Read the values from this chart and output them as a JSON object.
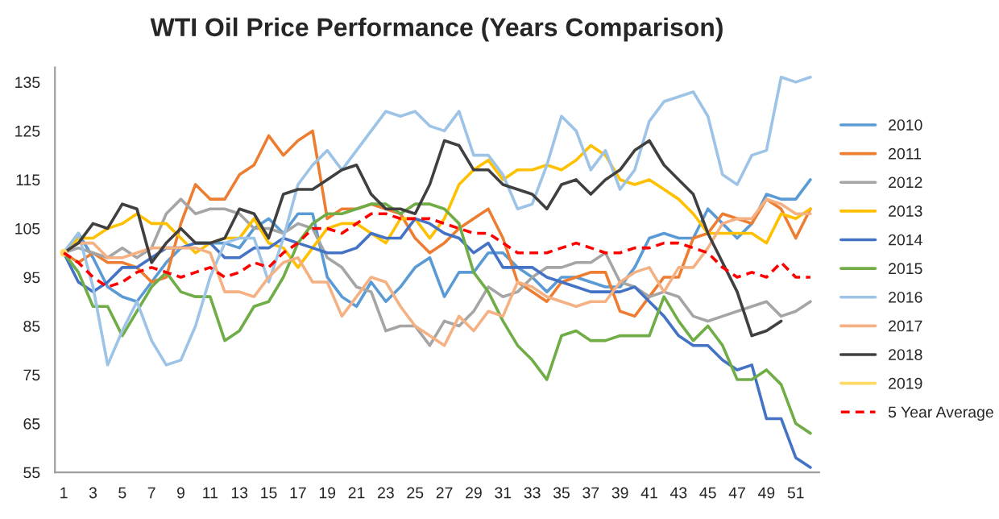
{
  "chart_data": {
    "type": "line",
    "title": "WTI Oil Price Performance (Years Comparison)",
    "categories": [
      "1",
      null,
      "3",
      null,
      "5",
      null,
      "7",
      null,
      "9",
      null,
      "11",
      null,
      "13",
      null,
      "15",
      null,
      "17",
      null,
      "19",
      null,
      "21",
      null,
      "23",
      null,
      "25",
      null,
      "27",
      null,
      "29",
      null,
      "31",
      null,
      "33",
      null,
      "35",
      null,
      "37",
      null,
      "39",
      null,
      "41",
      null,
      "43",
      null,
      "45",
      null,
      "47",
      null,
      "49",
      null,
      "51",
      null
    ],
    "ylim": [
      55,
      138
    ],
    "yticks": [
      55,
      65,
      75,
      85,
      95,
      105,
      115,
      125,
      135
    ],
    "grid": false,
    "legend": "right",
    "marker": "none",
    "series": [
      {
        "name": "2010",
        "color": "#5b9bd5",
        "values": [
          100,
          104,
          99,
          93,
          91,
          90,
          94,
          98,
          101,
          102,
          102,
          102,
          101,
          105,
          107,
          104,
          108,
          108,
          95,
          91,
          89,
          94,
          90,
          93,
          97,
          99,
          91,
          96,
          96,
          100,
          100,
          97,
          95,
          92,
          95,
          95,
          94,
          93,
          93,
          97,
          103,
          104,
          103,
          103,
          109,
          106,
          103,
          106,
          112,
          111,
          111,
          115
        ]
      },
      {
        "name": "2011",
        "color": "#ed7d31",
        "values": [
          100,
          98,
          100,
          98,
          98,
          97,
          94,
          95,
          106,
          114,
          111,
          111,
          116,
          118,
          124,
          120,
          123,
          125,
          107,
          109,
          109,
          110,
          109,
          108,
          103,
          100,
          102,
          105,
          107,
          109,
          103,
          94,
          92,
          90,
          94,
          95,
          96,
          96,
          88,
          87,
          91,
          95,
          95,
          103,
          104,
          108,
          107,
          106,
          111,
          109,
          103,
          109
        ]
      },
      {
        "name": "2012",
        "color": "#a5a5a5",
        "values": [
          100,
          101,
          100,
          99,
          101,
          99,
          101,
          108,
          111,
          108,
          109,
          109,
          108,
          105,
          105,
          104,
          106,
          105,
          99,
          97,
          93,
          92,
          84,
          85,
          85,
          81,
          86,
          85,
          88,
          93,
          91,
          92,
          95,
          97,
          97,
          98,
          98,
          100,
          94,
          93,
          91,
          92,
          91,
          87,
          86,
          87,
          88,
          89,
          90,
          87,
          88,
          90
        ]
      },
      {
        "name": "2013",
        "color": "#ffc000",
        "values": [
          100,
          103,
          103,
          105,
          106,
          108,
          106,
          106,
          103,
          100,
          102,
          103,
          103,
          107,
          102,
          101,
          97,
          101,
          105,
          106,
          106,
          104,
          102,
          107,
          107,
          103,
          107,
          114,
          117,
          119,
          115,
          117,
          117,
          118,
          117,
          119,
          122,
          120,
          115,
          114,
          115,
          113,
          111,
          108,
          104,
          104,
          104,
          104,
          102,
          108,
          107,
          109
        ]
      },
      {
        "name": "2014",
        "color": "#4472c4",
        "values": [
          100,
          94,
          92,
          94,
          97,
          97,
          99,
          101,
          101,
          102,
          102,
          99,
          99,
          101,
          101,
          103,
          102,
          101,
          100,
          100,
          101,
          104,
          103,
          103,
          107,
          106,
          104,
          103,
          100,
          102,
          97,
          97,
          97,
          95,
          94,
          93,
          92,
          92,
          92,
          93,
          90,
          87,
          83,
          81,
          81,
          78,
          76,
          77,
          66,
          66,
          58,
          56
        ]
      },
      {
        "name": "2015",
        "color": "#70ad47",
        "values": [
          100,
          96,
          89,
          89,
          83,
          88,
          93,
          96,
          92,
          91,
          91,
          82,
          84,
          89,
          90,
          95,
          102,
          106,
          108,
          108,
          109,
          110,
          110,
          108,
          110,
          110,
          109,
          106,
          96,
          92,
          86,
          81,
          78,
          74,
          83,
          84,
          82,
          82,
          83,
          83,
          83,
          91,
          86,
          82,
          85,
          81,
          74,
          74,
          76,
          73,
          65,
          63
        ]
      },
      {
        "name": "2016",
        "color": "#9dc3e6",
        "values": [
          100,
          104,
          93,
          77,
          84,
          90,
          82,
          77,
          78,
          85,
          95,
          102,
          103,
          103,
          94,
          103,
          114,
          118,
          121,
          117,
          121,
          125,
          129,
          128,
          129,
          126,
          125,
          129,
          120,
          120,
          116,
          109,
          110,
          118,
          128,
          125,
          117,
          121,
          113,
          117,
          127,
          131,
          132,
          133,
          128,
          116,
          114,
          120,
          121,
          136,
          135,
          136
        ]
      },
      {
        "name": "2017",
        "color": "#f4b183",
        "values": [
          100,
          102,
          102,
          99,
          99,
          100,
          101,
          101,
          101,
          101,
          100,
          92,
          92,
          91,
          95,
          98,
          99,
          94,
          94,
          87,
          91,
          95,
          94,
          89,
          85,
          83,
          81,
          87,
          84,
          88,
          87,
          94,
          93,
          91,
          90,
          89,
          90,
          90,
          94,
          96,
          97,
          92,
          97,
          97,
          101,
          106,
          107,
          107,
          111,
          110,
          108,
          108
        ]
      },
      {
        "name": "2018",
        "color": "#404040",
        "values": [
          100,
          102,
          106,
          105,
          110,
          109,
          98,
          102,
          105,
          102,
          102,
          103,
          109,
          108,
          103,
          112,
          113,
          113,
          115,
          117,
          118,
          112,
          109,
          109,
          108,
          114,
          123,
          122,
          117,
          117,
          114,
          113,
          112,
          109,
          114,
          115,
          112,
          115,
          117,
          121,
          123,
          118,
          115,
          112,
          104,
          98,
          92,
          83,
          84,
          86,
          null,
          null
        ]
      },
      {
        "name": "2019",
        "color": "#ffd966",
        "values": [
          100,
          null,
          null,
          null,
          null,
          null,
          null,
          null,
          null,
          null,
          null,
          null,
          null,
          null,
          null,
          null,
          null,
          null,
          null,
          null,
          null,
          null,
          null,
          null,
          null,
          null,
          null,
          null,
          null,
          null,
          null,
          null,
          null,
          null,
          null,
          null,
          null,
          null,
          null,
          null,
          null,
          null,
          null,
          null,
          null,
          null,
          null,
          null,
          null,
          null,
          null,
          null
        ]
      },
      {
        "name": "5 Year Average",
        "color": "#ff0000",
        "line_style": "dashed",
        "values": [
          100,
          98,
          95,
          93,
          94,
          96,
          97,
          96,
          95,
          96,
          97,
          95,
          96,
          98,
          97,
          100,
          102,
          105,
          105,
          104,
          106,
          108,
          108,
          107,
          107,
          107,
          106,
          105,
          104,
          104,
          102,
          100,
          100,
          100,
          101,
          102,
          101,
          100,
          100,
          101,
          101,
          102,
          102,
          101,
          100,
          97,
          95,
          96,
          95,
          98,
          95,
          95
        ]
      }
    ]
  }
}
